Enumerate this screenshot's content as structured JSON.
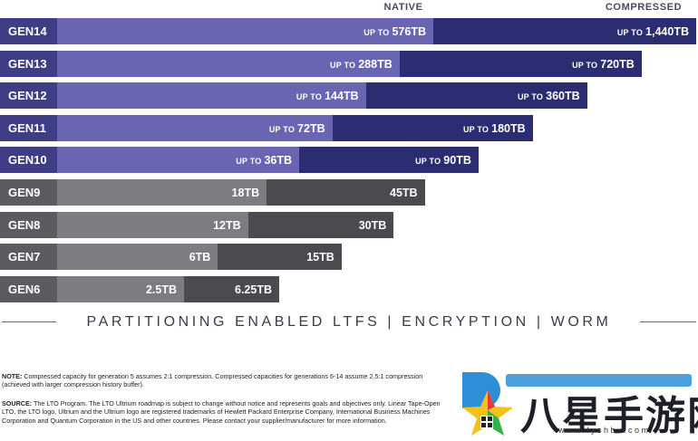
{
  "chart_data": {
    "type": "bar",
    "orientation": "horizontal",
    "stacked": true,
    "unit": "TB",
    "series_labels": {
      "native": "NATIVE",
      "compressed": "COMPRESSED"
    },
    "rows": [
      {
        "gen": "GEN14",
        "native": 576,
        "compressed": 1440,
        "native_text": "576TB",
        "compressed_text": "1,440TB",
        "prefix": "UP TO",
        "color": "purple"
      },
      {
        "gen": "GEN13",
        "native": 288,
        "compressed": 720,
        "native_text": "288TB",
        "compressed_text": "720TB",
        "prefix": "UP TO",
        "color": "purple"
      },
      {
        "gen": "GEN12",
        "native": 144,
        "compressed": 360,
        "native_text": "144TB",
        "compressed_text": "360TB",
        "prefix": "UP TO",
        "color": "purple"
      },
      {
        "gen": "GEN11",
        "native": 72,
        "compressed": 180,
        "native_text": "72TB",
        "compressed_text": "180TB",
        "prefix": "UP TO",
        "color": "purple"
      },
      {
        "gen": "GEN10",
        "native": 36,
        "compressed": 90,
        "native_text": "36TB",
        "compressed_text": "90TB",
        "prefix": "UP TO",
        "color": "purple"
      },
      {
        "gen": "GEN9",
        "native": 18,
        "compressed": 45,
        "native_text": "18TB",
        "compressed_text": "45TB",
        "prefix": "",
        "color": "gray"
      },
      {
        "gen": "GEN8",
        "native": 12,
        "compressed": 30,
        "native_text": "12TB",
        "compressed_text": "30TB",
        "prefix": "",
        "color": "gray"
      },
      {
        "gen": "GEN7",
        "native": 6,
        "compressed": 15,
        "native_text": "6TB",
        "compressed_text": "15TB",
        "prefix": "",
        "color": "gray"
      },
      {
        "gen": "GEN6",
        "native": 2.5,
        "compressed": 6.25,
        "native_text": "2.5TB",
        "compressed_text": "6.25TB",
        "prefix": "",
        "color": "gray"
      }
    ]
  },
  "features": "PARTITIONING ENABLED LTFS  |  ENCRYPTION  |  WORM",
  "note": {
    "label": "NOTE:",
    "text": "Compressed capacity for generation 5 assumes 2:1 compression. Compressed capacities for generations 6-14 assume 2.5:1 compression (achieved with larger compression history buffer)."
  },
  "source": {
    "label": "SOURCE:",
    "text": "The LTO Program. The LTO Ultrium roadmap is subject to change without notice and represents goals and objectives only. Linear Tape-Open LTO, the LTO logo, Ultrium and the Ultrium logo are registered trademarks of Hewlett Packard Enterprise Company, International Business Machines Corporation and Quantum Corporation in the US and other countries. Please contact your supplier/manufacturer for more information."
  },
  "watermark": {
    "text": "八星手游网",
    "url": "www.lyshbx.com"
  },
  "colors": {
    "purple_gen": "#3e3d86",
    "purple_native": "#6a65b3",
    "purple_compressed": "#2c2c72",
    "gray_gen": "#5c5c60",
    "gray_native": "#7d7d81",
    "gray_compressed": "#4b4b4f"
  }
}
